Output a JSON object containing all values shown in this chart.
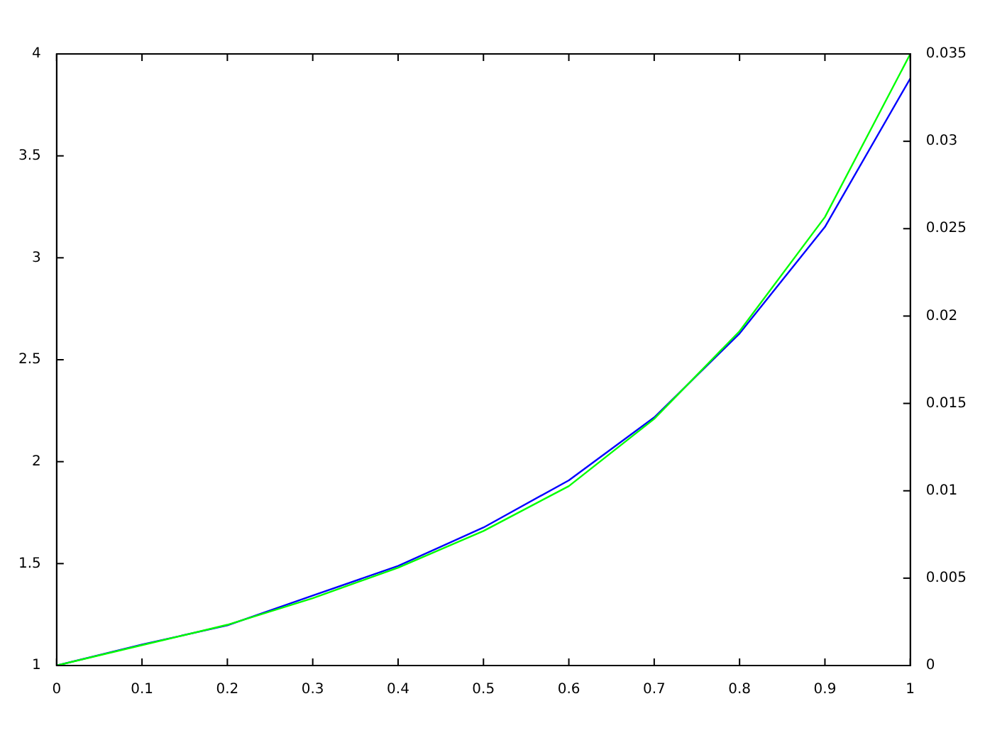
{
  "chart_data": {
    "type": "line",
    "x": [
      0,
      0.1,
      0.2,
      0.3,
      0.4,
      0.5,
      0.6,
      0.7,
      0.8,
      0.9,
      1
    ],
    "series": [
      {
        "color": "#00ff00",
        "values": [
          1,
          1.1,
          1.2,
          1.33,
          1.48,
          1.66,
          1.88,
          2.21,
          2.64,
          3.2,
          4
        ]
      },
      {
        "color": "#0000ff",
        "axis": "y2",
        "values": [
          0,
          0.0012,
          0.0023,
          0.004,
          0.0057,
          0.0079,
          0.0106,
          0.0142,
          0.019,
          0.0251,
          0.0336
        ]
      }
    ],
    "xlim": [
      0,
      1
    ],
    "xticks": [
      0,
      0.1,
      0.2,
      0.3,
      0.4,
      0.5,
      0.6,
      0.7,
      0.8,
      0.9,
      1
    ],
    "ylim": [
      1,
      4
    ],
    "yticks": [
      1,
      1.5,
      2,
      2.5,
      3,
      3.5,
      4
    ],
    "y2lim": [
      0,
      0.035
    ],
    "y2ticks": [
      0,
      0.005,
      0.01,
      0.015,
      0.02,
      0.025,
      0.03,
      0.035
    ],
    "grid": false,
    "legend": false,
    "marker": "none",
    "line_style": "solid"
  }
}
